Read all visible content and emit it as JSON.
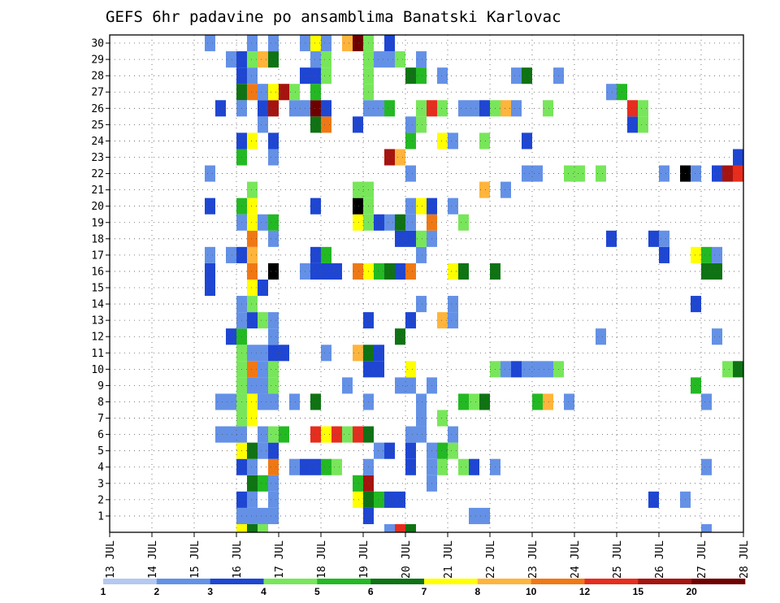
{
  "chart_data": {
    "type": "heatmap",
    "title": "GEFS 6hr padavine po ansamblima Banatski Karlovac",
    "xlabel": "",
    "ylabel": "",
    "x_ticks": [
      "13 JUL",
      "14 JUL",
      "15 JUL",
      "16 JUL",
      "17 JUL",
      "18 JUL",
      "19 JUL",
      "20 JUL",
      "21 JUL",
      "22 JUL",
      "23 JUL",
      "24 JUL",
      "25 JUL",
      "26 JUL",
      "27 JUL",
      "28 JUL"
    ],
    "y_ticks": [
      "1",
      "2",
      "3",
      "4",
      "5",
      "6",
      "7",
      "8",
      "9",
      "10",
      "11",
      "12",
      "13",
      "14",
      "15",
      "16",
      "17",
      "18",
      "19",
      "20",
      "21",
      "22",
      "23",
      "24",
      "25",
      "26",
      "27",
      "28",
      "29",
      "30"
    ],
    "x_range_days": [
      13,
      28
    ],
    "members_range": [
      0,
      30
    ],
    "step_hours": 6,
    "grid": "dotted",
    "colorbar": {
      "position": "bottom",
      "levels": [
        "1",
        "2",
        "3",
        "4",
        "5",
        "6",
        "7",
        "8",
        "10",
        "12",
        "15",
        "20"
      ],
      "colors": [
        "#b4c8f0",
        "#6491e6",
        "#1e46d2",
        "#78e65a",
        "#23b923",
        "#0f7314",
        "#ffff00",
        "#ffb43c",
        "#f07814",
        "#e62d1e",
        "#a5140f",
        "#6e0000"
      ]
    },
    "cells": [
      [
        16.0,
        0,
        6
      ],
      [
        16.25,
        0,
        5
      ],
      [
        16.5,
        0,
        3
      ],
      [
        19.5,
        0,
        1
      ],
      [
        19.75,
        0,
        9
      ],
      [
        20.0,
        0,
        5
      ],
      [
        27.0,
        0,
        1
      ],
      [
        16.0,
        1,
        1
      ],
      [
        16.25,
        1,
        1
      ],
      [
        16.5,
        1,
        1
      ],
      [
        16.75,
        1,
        1
      ],
      [
        19.0,
        1,
        2
      ],
      [
        21.5,
        1,
        1
      ],
      [
        21.75,
        1,
        1
      ],
      [
        28.0,
        1,
        2
      ],
      [
        16.0,
        2,
        2
      ],
      [
        16.25,
        2,
        1
      ],
      [
        16.75,
        2,
        1
      ],
      [
        18.75,
        2,
        6
      ],
      [
        19.0,
        2,
        5
      ],
      [
        19.25,
        2,
        4
      ],
      [
        19.5,
        2,
        2
      ],
      [
        19.75,
        2,
        2
      ],
      [
        25.75,
        2,
        2
      ],
      [
        26.5,
        2,
        1
      ],
      [
        16.25,
        3,
        5
      ],
      [
        16.5,
        3,
        4
      ],
      [
        16.75,
        3,
        1
      ],
      [
        18.75,
        3,
        4
      ],
      [
        19.0,
        3,
        10
      ],
      [
        20.5,
        3,
        1
      ],
      [
        16.0,
        4,
        2
      ],
      [
        16.25,
        4,
        1
      ],
      [
        16.75,
        4,
        8
      ],
      [
        17.25,
        4,
        1
      ],
      [
        17.5,
        4,
        2
      ],
      [
        17.75,
        4,
        2
      ],
      [
        18.0,
        4,
        4
      ],
      [
        18.25,
        4,
        3
      ],
      [
        19.0,
        4,
        1
      ],
      [
        20.0,
        4,
        2
      ],
      [
        20.5,
        4,
        1
      ],
      [
        20.75,
        4,
        3
      ],
      [
        21.25,
        4,
        3
      ],
      [
        21.5,
        4,
        2
      ],
      [
        22.0,
        4,
        1
      ],
      [
        27.0,
        4,
        1
      ],
      [
        16.0,
        5,
        6
      ],
      [
        16.25,
        5,
        5
      ],
      [
        16.5,
        5,
        1
      ],
      [
        16.75,
        5,
        2
      ],
      [
        19.25,
        5,
        1
      ],
      [
        19.5,
        5,
        2
      ],
      [
        20.0,
        5,
        2
      ],
      [
        20.5,
        5,
        1
      ],
      [
        20.75,
        5,
        4
      ],
      [
        21.0,
        5,
        3
      ],
      [
        15.5,
        6,
        1
      ],
      [
        15.75,
        6,
        1
      ],
      [
        16.0,
        6,
        1
      ],
      [
        16.5,
        6,
        1
      ],
      [
        16.75,
        6,
        3
      ],
      [
        17.0,
        6,
        4
      ],
      [
        17.75,
        6,
        9
      ],
      [
        18.0,
        6,
        6
      ],
      [
        18.25,
        6,
        9
      ],
      [
        18.5,
        6,
        3
      ],
      [
        18.75,
        6,
        9
      ],
      [
        19.0,
        6,
        5
      ],
      [
        20.0,
        6,
        1
      ],
      [
        20.25,
        6,
        1
      ],
      [
        21.0,
        6,
        1
      ],
      [
        16.0,
        7,
        3
      ],
      [
        16.25,
        7,
        6
      ],
      [
        20.25,
        7,
        1
      ],
      [
        20.75,
        7,
        3
      ],
      [
        15.5,
        8,
        1
      ],
      [
        15.75,
        8,
        1
      ],
      [
        16.0,
        8,
        3
      ],
      [
        16.25,
        8,
        6
      ],
      [
        16.5,
        8,
        1
      ],
      [
        16.75,
        8,
        1
      ],
      [
        17.25,
        8,
        1
      ],
      [
        17.75,
        8,
        5
      ],
      [
        19.0,
        8,
        1
      ],
      [
        20.25,
        8,
        1
      ],
      [
        21.25,
        8,
        4
      ],
      [
        21.5,
        8,
        3
      ],
      [
        21.75,
        8,
        5
      ],
      [
        23.0,
        8,
        4
      ],
      [
        23.25,
        8,
        7
      ],
      [
        23.75,
        8,
        1
      ],
      [
        27.0,
        8,
        1
      ],
      [
        16.0,
        9,
        3
      ],
      [
        16.25,
        9,
        1
      ],
      [
        16.5,
        9,
        1
      ],
      [
        16.75,
        9,
        3
      ],
      [
        18.5,
        9,
        1
      ],
      [
        19.75,
        9,
        1
      ],
      [
        20.0,
        9,
        1
      ],
      [
        20.5,
        9,
        1
      ],
      [
        26.75,
        9,
        4
      ],
      [
        16.0,
        10,
        3
      ],
      [
        16.25,
        10,
        8
      ],
      [
        16.5,
        10,
        1
      ],
      [
        16.75,
        10,
        3
      ],
      [
        19.0,
        10,
        2
      ],
      [
        19.25,
        10,
        2
      ],
      [
        20.0,
        10,
        6
      ],
      [
        22.0,
        10,
        3
      ],
      [
        22.25,
        10,
        1
      ],
      [
        22.5,
        10,
        2
      ],
      [
        22.75,
        10,
        1
      ],
      [
        23.0,
        10,
        1
      ],
      [
        23.25,
        10,
        1
      ],
      [
        23.5,
        10,
        3
      ],
      [
        27.5,
        10,
        3
      ],
      [
        27.75,
        10,
        5
      ],
      [
        16.0,
        11,
        3
      ],
      [
        16.25,
        11,
        1
      ],
      [
        16.5,
        11,
        1
      ],
      [
        16.75,
        11,
        2
      ],
      [
        17.0,
        11,
        2
      ],
      [
        18.0,
        11,
        1
      ],
      [
        18.75,
        11,
        7
      ],
      [
        19.0,
        11,
        5
      ],
      [
        19.25,
        11,
        2
      ],
      [
        15.75,
        12,
        2
      ],
      [
        16.0,
        12,
        4
      ],
      [
        16.75,
        12,
        1
      ],
      [
        19.75,
        12,
        5
      ],
      [
        24.5,
        12,
        1
      ],
      [
        27.25,
        12,
        1
      ],
      [
        16.0,
        13,
        1
      ],
      [
        16.25,
        13,
        2
      ],
      [
        16.5,
        13,
        3
      ],
      [
        16.75,
        13,
        1
      ],
      [
        19.0,
        13,
        2
      ],
      [
        20.0,
        13,
        2
      ],
      [
        20.75,
        13,
        7
      ],
      [
        21.0,
        13,
        1
      ],
      [
        16.0,
        14,
        1
      ],
      [
        16.25,
        14,
        3
      ],
      [
        20.25,
        14,
        1
      ],
      [
        21.0,
        14,
        1
      ],
      [
        26.75,
        14,
        2
      ],
      [
        15.25,
        15,
        2
      ],
      [
        16.25,
        15,
        6
      ],
      [
        16.5,
        15,
        2
      ],
      [
        15.25,
        16,
        2
      ],
      [
        16.25,
        16,
        8
      ],
      [
        16.75,
        16,
        12
      ],
      [
        17.5,
        16,
        1
      ],
      [
        17.75,
        16,
        2
      ],
      [
        18.0,
        16,
        2
      ],
      [
        18.25,
        16,
        2
      ],
      [
        18.75,
        16,
        8
      ],
      [
        19.0,
        16,
        6
      ],
      [
        19.25,
        16,
        4
      ],
      [
        19.5,
        16,
        5
      ],
      [
        19.75,
        16,
        2
      ],
      [
        20.0,
        16,
        8
      ],
      [
        21.0,
        16,
        6
      ],
      [
        21.25,
        16,
        5
      ],
      [
        22.0,
        16,
        5
      ],
      [
        27.0,
        16,
        5
      ],
      [
        27.25,
        16,
        5
      ],
      [
        15.25,
        17,
        1
      ],
      [
        15.75,
        17,
        1
      ],
      [
        16.0,
        17,
        2
      ],
      [
        16.25,
        17,
        7
      ],
      [
        17.75,
        17,
        2
      ],
      [
        18.0,
        17,
        4
      ],
      [
        20.25,
        17,
        1
      ],
      [
        26.0,
        17,
        2
      ],
      [
        26.75,
        17,
        6
      ],
      [
        27.0,
        17,
        4
      ],
      [
        27.25,
        17,
        1
      ],
      [
        16.25,
        18,
        8
      ],
      [
        16.75,
        18,
        1
      ],
      [
        19.75,
        18,
        2
      ],
      [
        20.0,
        18,
        2
      ],
      [
        20.25,
        18,
        3
      ],
      [
        20.5,
        18,
        1
      ],
      [
        24.75,
        18,
        2
      ],
      [
        25.75,
        18,
        2
      ],
      [
        26.0,
        18,
        1
      ],
      [
        16.0,
        19,
        1
      ],
      [
        16.25,
        19,
        6
      ],
      [
        16.5,
        19,
        1
      ],
      [
        16.75,
        19,
        4
      ],
      [
        18.75,
        19,
        6
      ],
      [
        19.0,
        19,
        3
      ],
      [
        19.25,
        19,
        2
      ],
      [
        19.5,
        19,
        1
      ],
      [
        19.75,
        19,
        5
      ],
      [
        20.0,
        19,
        1
      ],
      [
        20.5,
        19,
        8
      ],
      [
        21.25,
        19,
        3
      ],
      [
        15.25,
        20,
        2
      ],
      [
        16.0,
        20,
        4
      ],
      [
        16.25,
        20,
        6
      ],
      [
        17.75,
        20,
        2
      ],
      [
        18.75,
        20,
        12
      ],
      [
        19.0,
        20,
        3
      ],
      [
        20.0,
        20,
        1
      ],
      [
        20.25,
        20,
        6
      ],
      [
        20.5,
        20,
        2
      ],
      [
        21.0,
        20,
        1
      ],
      [
        16.25,
        21,
        3
      ],
      [
        18.75,
        21,
        3
      ],
      [
        19.0,
        21,
        3
      ],
      [
        21.75,
        21,
        7
      ],
      [
        22.25,
        21,
        1
      ],
      [
        15.25,
        22,
        1
      ],
      [
        20.0,
        22,
        1
      ],
      [
        22.75,
        22,
        1
      ],
      [
        23.0,
        22,
        1
      ],
      [
        23.75,
        22,
        3
      ],
      [
        24.0,
        22,
        3
      ],
      [
        24.5,
        22,
        3
      ],
      [
        26.0,
        22,
        1
      ],
      [
        26.5,
        22,
        12
      ],
      [
        26.75,
        22,
        1
      ],
      [
        27.25,
        22,
        2
      ],
      [
        27.5,
        22,
        10
      ],
      [
        27.75,
        22,
        9
      ],
      [
        16.0,
        23,
        4
      ],
      [
        16.75,
        23,
        1
      ],
      [
        19.5,
        23,
        10
      ],
      [
        19.75,
        23,
        7
      ],
      [
        27.75,
        23,
        2
      ],
      [
        16.0,
        24,
        2
      ],
      [
        16.25,
        24,
        6
      ],
      [
        16.75,
        24,
        2
      ],
      [
        20.0,
        24,
        4
      ],
      [
        20.75,
        24,
        6
      ],
      [
        21.0,
        24,
        1
      ],
      [
        21.75,
        24,
        3
      ],
      [
        22.75,
        24,
        2
      ],
      [
        16.5,
        25,
        1
      ],
      [
        17.75,
        25,
        5
      ],
      [
        18.0,
        25,
        8
      ],
      [
        18.75,
        25,
        2
      ],
      [
        20.0,
        25,
        1
      ],
      [
        20.25,
        25,
        3
      ],
      [
        25.25,
        25,
        2
      ],
      [
        25.5,
        25,
        3
      ],
      [
        15.5,
        26,
        2
      ],
      [
        16.0,
        26,
        1
      ],
      [
        16.5,
        26,
        2
      ],
      [
        16.75,
        26,
        10
      ],
      [
        17.25,
        26,
        1
      ],
      [
        17.5,
        26,
        1
      ],
      [
        17.75,
        26,
        11
      ],
      [
        18.0,
        26,
        2
      ],
      [
        19.0,
        26,
        1
      ],
      [
        19.25,
        26,
        1
      ],
      [
        19.5,
        26,
        4
      ],
      [
        20.25,
        26,
        3
      ],
      [
        20.5,
        26,
        9
      ],
      [
        20.75,
        26,
        3
      ],
      [
        21.25,
        26,
        1
      ],
      [
        21.5,
        26,
        1
      ],
      [
        21.75,
        26,
        2
      ],
      [
        22.0,
        26,
        3
      ],
      [
        22.25,
        26,
        7
      ],
      [
        22.5,
        26,
        1
      ],
      [
        23.25,
        26,
        3
      ],
      [
        25.25,
        26,
        9
      ],
      [
        25.5,
        26,
        3
      ],
      [
        16.0,
        27,
        5
      ],
      [
        16.25,
        27,
        8
      ],
      [
        16.5,
        27,
        1
      ],
      [
        16.75,
        27,
        6
      ],
      [
        17.0,
        27,
        10
      ],
      [
        17.25,
        27,
        3
      ],
      [
        17.75,
        27,
        4
      ],
      [
        19.0,
        27,
        3
      ],
      [
        24.75,
        27,
        1
      ],
      [
        25.0,
        27,
        4
      ],
      [
        16.0,
        28,
        2
      ],
      [
        16.25,
        28,
        1
      ],
      [
        17.5,
        28,
        2
      ],
      [
        17.75,
        28,
        2
      ],
      [
        18.0,
        28,
        3
      ],
      [
        19.0,
        28,
        3
      ],
      [
        20.0,
        28,
        5
      ],
      [
        20.25,
        28,
        4
      ],
      [
        20.75,
        28,
        1
      ],
      [
        22.5,
        28,
        1
      ],
      [
        22.75,
        28,
        5
      ],
      [
        23.5,
        28,
        1
      ],
      [
        15.75,
        29,
        1
      ],
      [
        16.0,
        29,
        2
      ],
      [
        16.25,
        29,
        3
      ],
      [
        16.5,
        29,
        7
      ],
      [
        16.75,
        29,
        5
      ],
      [
        17.75,
        29,
        1
      ],
      [
        18.0,
        29,
        3
      ],
      [
        19.0,
        29,
        3
      ],
      [
        19.25,
        29,
        1
      ],
      [
        19.5,
        29,
        1
      ],
      [
        19.75,
        29,
        3
      ],
      [
        20.25,
        29,
        1
      ],
      [
        15.25,
        30,
        1
      ],
      [
        16.25,
        30,
        1
      ],
      [
        16.75,
        30,
        1
      ],
      [
        17.5,
        30,
        1
      ],
      [
        17.75,
        30,
        6
      ],
      [
        18.0,
        30,
        1
      ],
      [
        18.5,
        30,
        7
      ],
      [
        18.75,
        30,
        11
      ],
      [
        19.0,
        30,
        3
      ],
      [
        19.5,
        30,
        2
      ]
    ]
  }
}
